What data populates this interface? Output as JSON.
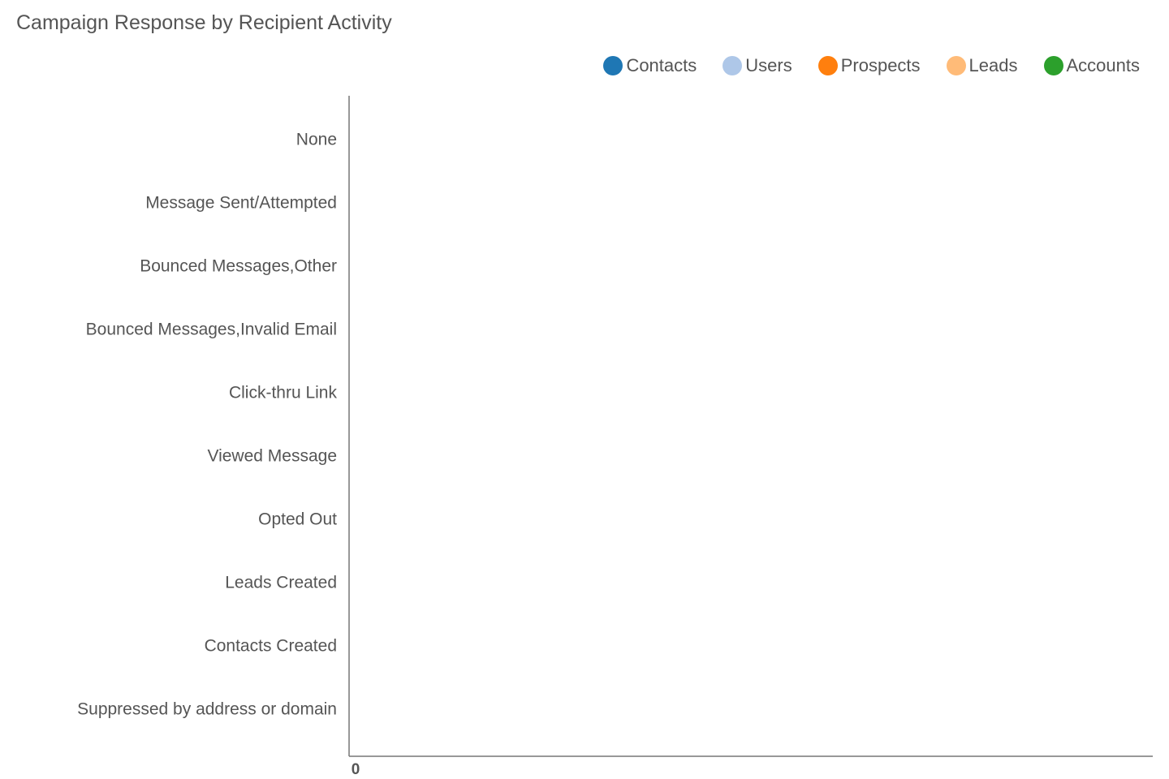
{
  "chart_data": {
    "type": "bar",
    "orientation": "horizontal",
    "stacked": true,
    "title": "Campaign Response by Recipient Activity",
    "categories": [
      "None",
      "Message Sent/Attempted",
      "Bounced Messages,Other",
      "Bounced Messages,Invalid Email",
      "Click-thru Link",
      "Viewed Message",
      "Opted Out",
      "Leads Created",
      "Contacts Created",
      "Suppressed by address or domain"
    ],
    "series": [
      {
        "name": "Contacts",
        "color": "#1f77b4",
        "values": [
          0,
          0,
          0,
          0,
          0,
          0,
          0,
          0,
          0,
          0
        ]
      },
      {
        "name": "Users",
        "color": "#aec7e8",
        "values": [
          0,
          0,
          0,
          0,
          0,
          0,
          0,
          0,
          0,
          0
        ]
      },
      {
        "name": "Prospects",
        "color": "#ff7f0e",
        "values": [
          0,
          0,
          0,
          0,
          0,
          0,
          0,
          0,
          0,
          0
        ]
      },
      {
        "name": "Leads",
        "color": "#ffbb78",
        "values": [
          0,
          0,
          0,
          0,
          0,
          0,
          0,
          0,
          0,
          0
        ]
      },
      {
        "name": "Accounts",
        "color": "#2ca02c",
        "values": [
          0,
          0,
          0,
          0,
          0,
          0,
          0,
          0,
          0,
          0
        ]
      }
    ],
    "x_ticks": [
      "0"
    ],
    "xlim": [
      0,
      1
    ],
    "legend_position": "top-right",
    "grid": false
  }
}
